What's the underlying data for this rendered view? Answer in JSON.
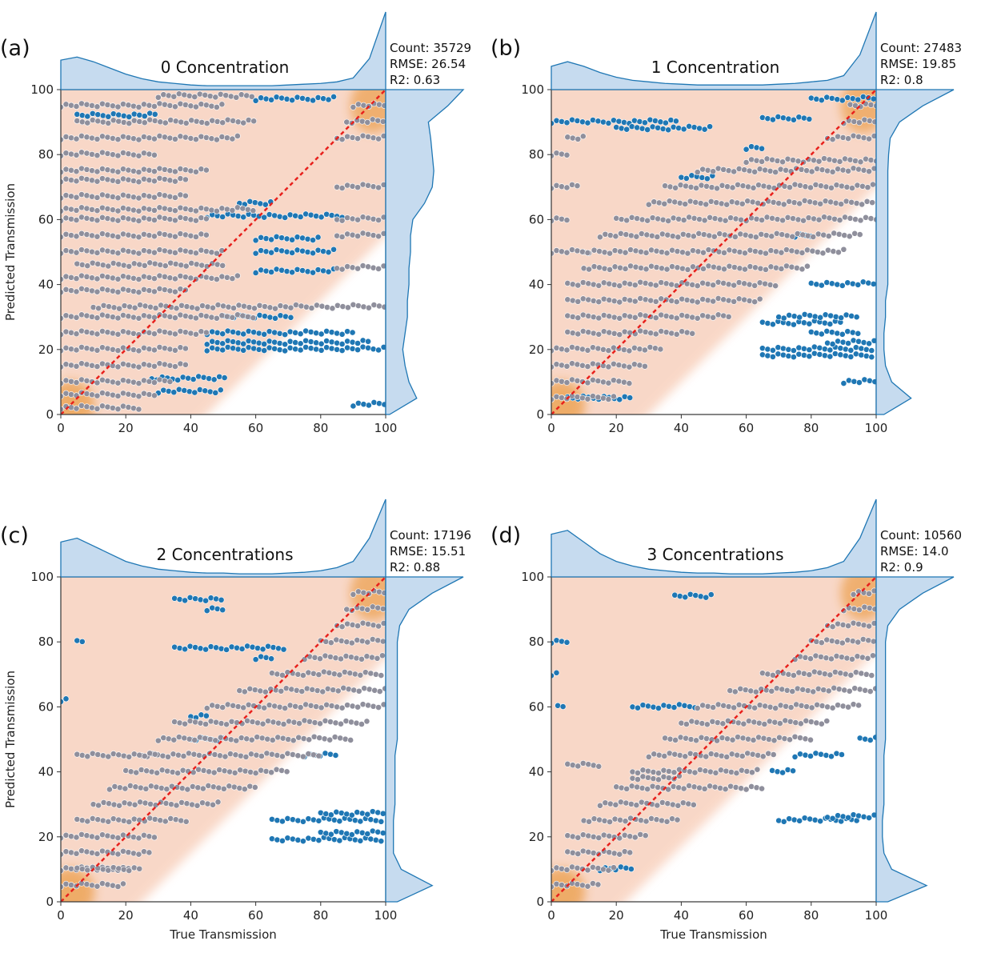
{
  "chart_data": [
    {
      "type": "scatter",
      "panel_label": "(a)",
      "title": "0 Concentration",
      "xlabel": "",
      "ylabel": "Predicted Transmission",
      "xlim": [
        0,
        100
      ],
      "ylim": [
        0,
        100
      ],
      "ticks": [
        "0",
        "20",
        "40",
        "60",
        "80",
        "100"
      ],
      "stats": [
        "Count: 35729",
        "RMSE: 26.54",
        "R2: 0.63"
      ],
      "kde_band_halfwidth": 40,
      "top_marginal": [
        0.38,
        0.42,
        0.36,
        0.28,
        0.2,
        0.14,
        0.1,
        0.08,
        0.06,
        0.05,
        0.05,
        0.05,
        0.05,
        0.05,
        0.06,
        0.07,
        0.08,
        0.1,
        0.15,
        0.4,
        1.0
      ],
      "right_marginal": [
        0.05,
        0.4,
        0.3,
        0.25,
        0.22,
        0.25,
        0.28,
        0.28,
        0.3,
        0.3,
        0.32,
        0.32,
        0.35,
        0.5,
        0.6,
        0.62,
        0.6,
        0.58,
        0.55,
        0.8,
        1.0
      ],
      "blue_streaks": [
        [
          11,
          28,
          52
        ],
        [
          20,
          45,
          100
        ],
        [
          22,
          45,
          95
        ],
        [
          25,
          45,
          90
        ],
        [
          30,
          50,
          72
        ],
        [
          33,
          50,
          70
        ],
        [
          44,
          60,
          85
        ],
        [
          50,
          60,
          85
        ],
        [
          54,
          60,
          80
        ],
        [
          61,
          45,
          88
        ],
        [
          65,
          55,
          65
        ],
        [
          92,
          5,
          30
        ],
        [
          97,
          60,
          85
        ],
        [
          7,
          30,
          50
        ],
        [
          3,
          90,
          100
        ]
      ],
      "grey_streaks": [
        [
          2,
          0,
          25
        ],
        [
          6,
          0,
          30
        ],
        [
          10,
          0,
          35
        ],
        [
          15,
          0,
          40
        ],
        [
          20,
          0,
          40
        ],
        [
          25,
          0,
          45
        ],
        [
          30,
          0,
          60
        ],
        [
          33,
          10,
          100
        ],
        [
          38,
          0,
          40
        ],
        [
          42,
          0,
          55
        ],
        [
          46,
          5,
          50
        ],
        [
          50,
          0,
          50
        ],
        [
          55,
          0,
          45
        ],
        [
          60,
          0,
          45
        ],
        [
          63,
          0,
          60
        ],
        [
          67,
          0,
          40
        ],
        [
          72,
          0,
          40
        ],
        [
          75,
          0,
          45
        ],
        [
          80,
          0,
          30
        ],
        [
          85,
          0,
          55
        ],
        [
          90,
          5,
          60
        ],
        [
          95,
          0,
          50
        ],
        [
          98,
          30,
          60
        ],
        [
          45,
          85,
          100
        ],
        [
          55,
          85,
          100
        ],
        [
          60,
          85,
          100
        ],
        [
          70,
          85,
          100
        ],
        [
          85,
          85,
          100
        ],
        [
          90,
          88,
          100
        ],
        [
          95,
          90,
          100
        ]
      ]
    },
    {
      "type": "scatter",
      "panel_label": "(b)",
      "title": "1 Concentration",
      "xlabel": "",
      "ylabel": "",
      "xlim": [
        0,
        100
      ],
      "ylim": [
        0,
        100
      ],
      "ticks": [
        "0",
        "20",
        "40",
        "60",
        "80",
        "100"
      ],
      "stats": [
        "Count: 27483",
        "RMSE: 19.85",
        "R2: 0.8"
      ],
      "kde_band_halfwidth": 25,
      "top_marginal": [
        0.3,
        0.36,
        0.3,
        0.22,
        0.16,
        0.12,
        0.1,
        0.08,
        0.07,
        0.06,
        0.06,
        0.06,
        0.06,
        0.06,
        0.07,
        0.08,
        0.1,
        0.12,
        0.18,
        0.45,
        1.0
      ],
      "right_marginal": [
        0.1,
        0.45,
        0.2,
        0.12,
        0.1,
        0.1,
        0.12,
        0.12,
        0.15,
        0.15,
        0.15,
        0.15,
        0.15,
        0.15,
        0.15,
        0.15,
        0.16,
        0.18,
        0.3,
        0.6,
        1.0
      ],
      "blue_streaks": [
        [
          90,
          0,
          40
        ],
        [
          88,
          20,
          50
        ],
        [
          97,
          80,
          100
        ],
        [
          91,
          65,
          80
        ],
        [
          82,
          60,
          65
        ],
        [
          73,
          40,
          50
        ],
        [
          20,
          65,
          100
        ],
        [
          18,
          65,
          100
        ],
        [
          22,
          85,
          100
        ],
        [
          25,
          80,
          95
        ],
        [
          28,
          65,
          90
        ],
        [
          30,
          70,
          95
        ],
        [
          40,
          80,
          100
        ],
        [
          55,
          75,
          80
        ],
        [
          10,
          90,
          100
        ],
        [
          5,
          5,
          25
        ]
      ],
      "grey_streaks": [
        [
          5,
          0,
          20
        ],
        [
          10,
          0,
          25
        ],
        [
          15,
          0,
          30
        ],
        [
          20,
          0,
          35
        ],
        [
          25,
          5,
          45
        ],
        [
          30,
          5,
          55
        ],
        [
          35,
          5,
          65
        ],
        [
          40,
          5,
          70
        ],
        [
          45,
          10,
          80
        ],
        [
          50,
          10,
          90
        ],
        [
          55,
          15,
          95
        ],
        [
          60,
          20,
          100
        ],
        [
          65,
          30,
          100
        ],
        [
          70,
          35,
          100
        ],
        [
          75,
          45,
          100
        ],
        [
          78,
          60,
          100
        ],
        [
          85,
          85,
          100
        ],
        [
          90,
          90,
          100
        ],
        [
          95,
          92,
          100
        ],
        [
          60,
          0,
          5
        ],
        [
          70,
          0,
          8
        ],
        [
          80,
          0,
          6
        ],
        [
          85,
          5,
          10
        ],
        [
          50,
          0,
          12
        ]
      ]
    },
    {
      "type": "scatter",
      "panel_label": "(c)",
      "title": "2 Concentrations",
      "xlabel": "True Transmission",
      "ylabel": "Predicted Transmission",
      "xlim": [
        0,
        100
      ],
      "ylim": [
        0,
        100
      ],
      "ticks": [
        "0",
        "20",
        "40",
        "60",
        "80",
        "100"
      ],
      "stats": [
        "Count: 17196",
        "RMSE: 15.51",
        "R2: 0.88"
      ],
      "kde_band_halfwidth": 20,
      "top_marginal": [
        0.45,
        0.5,
        0.4,
        0.3,
        0.2,
        0.14,
        0.1,
        0.08,
        0.06,
        0.05,
        0.05,
        0.04,
        0.04,
        0.04,
        0.05,
        0.06,
        0.08,
        0.12,
        0.2,
        0.5,
        1.0
      ],
      "right_marginal": [
        0.15,
        0.6,
        0.2,
        0.1,
        0.1,
        0.1,
        0.12,
        0.12,
        0.12,
        0.12,
        0.15,
        0.15,
        0.15,
        0.15,
        0.15,
        0.15,
        0.15,
        0.18,
        0.3,
        0.6,
        1.0
      ],
      "blue_streaks": [
        [
          19,
          65,
          100
        ],
        [
          21,
          80,
          100
        ],
        [
          25,
          65,
          100
        ],
        [
          27,
          80,
          100
        ],
        [
          78,
          35,
          70
        ],
        [
          75,
          60,
          65
        ],
        [
          93,
          35,
          50
        ],
        [
          90,
          45,
          50
        ],
        [
          62,
          0,
          2
        ],
        [
          80,
          5,
          8
        ],
        [
          45,
          75,
          85
        ],
        [
          50,
          40,
          50
        ],
        [
          57,
          40,
          45
        ]
      ],
      "grey_streaks": [
        [
          5,
          0,
          20
        ],
        [
          10,
          0,
          22
        ],
        [
          15,
          0,
          28
        ],
        [
          20,
          0,
          30
        ],
        [
          25,
          5,
          40
        ],
        [
          30,
          10,
          50
        ],
        [
          35,
          15,
          60
        ],
        [
          40,
          20,
          70
        ],
        [
          45,
          25,
          80
        ],
        [
          50,
          30,
          90
        ],
        [
          55,
          35,
          95
        ],
        [
          60,
          45,
          100
        ],
        [
          65,
          55,
          100
        ],
        [
          70,
          65,
          100
        ],
        [
          75,
          75,
          100
        ],
        [
          80,
          80,
          100
        ],
        [
          85,
          85,
          100
        ],
        [
          90,
          88,
          100
        ],
        [
          95,
          90,
          100
        ],
        [
          45,
          5,
          30
        ],
        [
          10,
          5,
          25
        ]
      ]
    },
    {
      "type": "scatter",
      "panel_label": "(d)",
      "title": "3 Concentrations",
      "xlabel": "True Transmission",
      "ylabel": "",
      "xlim": [
        0,
        100
      ],
      "ylim": [
        0,
        100
      ],
      "ticks": [
        "0",
        "20",
        "40",
        "60",
        "80",
        "100"
      ],
      "stats": [
        "Count: 10560",
        "RMSE: 14.0",
        "R2: 0.9"
      ],
      "kde_band_halfwidth": 18,
      "top_marginal": [
        0.55,
        0.6,
        0.45,
        0.3,
        0.2,
        0.14,
        0.1,
        0.08,
        0.06,
        0.05,
        0.05,
        0.04,
        0.04,
        0.04,
        0.05,
        0.06,
        0.08,
        0.12,
        0.2,
        0.5,
        1.0
      ],
      "right_marginal": [
        0.15,
        0.65,
        0.2,
        0.1,
        0.08,
        0.08,
        0.1,
        0.1,
        0.1,
        0.1,
        0.12,
        0.12,
        0.12,
        0.12,
        0.12,
        0.12,
        0.12,
        0.15,
        0.3,
        0.6,
        1.0
      ],
      "blue_streaks": [
        [
          94,
          38,
          50
        ],
        [
          25,
          70,
          95
        ],
        [
          26,
          85,
          100
        ],
        [
          60,
          25,
          45
        ],
        [
          45,
          75,
          90
        ],
        [
          40,
          68,
          75
        ],
        [
          80,
          0,
          5
        ],
        [
          70,
          0,
          3
        ],
        [
          60,
          2,
          5
        ],
        [
          10,
          15,
          25
        ],
        [
          50,
          95,
          100
        ]
      ],
      "grey_streaks": [
        [
          5,
          0,
          15
        ],
        [
          10,
          0,
          20
        ],
        [
          15,
          5,
          25
        ],
        [
          20,
          5,
          30
        ],
        [
          25,
          10,
          40
        ],
        [
          30,
          15,
          45
        ],
        [
          35,
          20,
          60
        ],
        [
          40,
          25,
          65
        ],
        [
          45,
          30,
          70
        ],
        [
          50,
          35,
          80
        ],
        [
          55,
          40,
          85
        ],
        [
          60,
          45,
          95
        ],
        [
          65,
          55,
          100
        ],
        [
          70,
          65,
          100
        ],
        [
          75,
          75,
          100
        ],
        [
          80,
          80,
          100
        ],
        [
          85,
          85,
          100
        ],
        [
          90,
          90,
          100
        ],
        [
          95,
          93,
          100
        ],
        [
          38,
          25,
          40
        ],
        [
          42,
          5,
          15
        ],
        [
          35,
          60,
          65
        ]
      ]
    }
  ],
  "colors": {
    "blue": "#1f77b4",
    "grey": "#8f8f9c",
    "kde": "#f4b89a",
    "kde_hot": "#e8902a",
    "marginal_fill": "#c6dbef",
    "identity": "#e8211d"
  }
}
